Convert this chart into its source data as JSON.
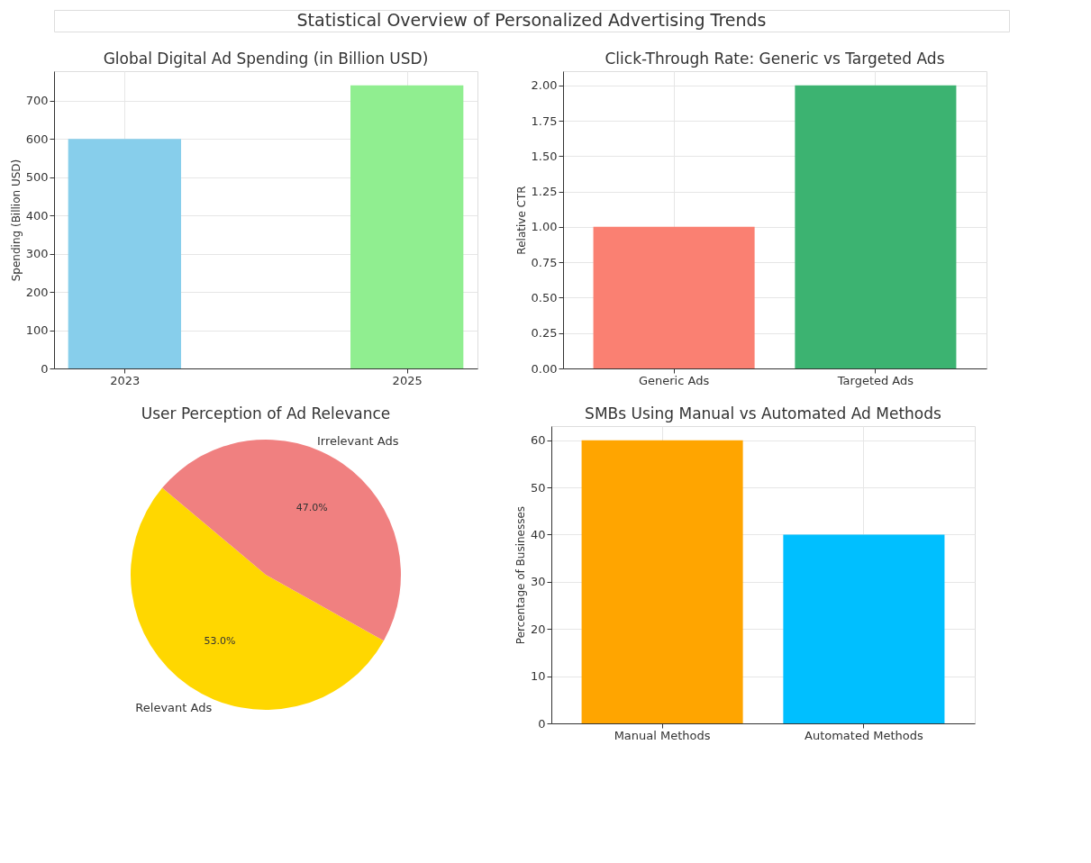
{
  "chart_data": [
    {
      "type": "other",
      "title": "Statistical Overview of Personalized Advertising Trends"
    },
    {
      "type": "bar",
      "title": "Global Digital Ad Spending (in Billion USD)",
      "ylabel": "Spending (Billion USD)",
      "x": [
        2023,
        2025
      ],
      "values": [
        600,
        740
      ],
      "colors": [
        "#87ceeb",
        "#90ee90"
      ],
      "xlim": [
        2022.5,
        2025.5
      ],
      "xticks": [
        2023,
        2025
      ],
      "ylim": [
        0,
        777
      ],
      "yticks": [
        0,
        100,
        200,
        300,
        400,
        500,
        600,
        700
      ],
      "grid": true
    },
    {
      "type": "bar",
      "title": "Click-Through Rate: Generic vs Targeted Ads",
      "ylabel": "Relative CTR",
      "categories": [
        "Generic Ads",
        "Targeted Ads"
      ],
      "values": [
        1.0,
        2.0
      ],
      "colors": [
        "#fa8072",
        "#3cb371"
      ],
      "ylim": [
        0,
        2.1
      ],
      "yticks": [
        {
          "value": 0,
          "label": "0.00"
        },
        {
          "value": 0.25,
          "label": "0.25"
        },
        {
          "value": 0.5,
          "label": "0.50"
        },
        {
          "value": 0.75,
          "label": "0.75"
        },
        {
          "value": 1,
          "label": "1.00"
        },
        {
          "value": 1.25,
          "label": "1.25"
        },
        {
          "value": 1.5,
          "label": "1.50"
        },
        {
          "value": 1.75,
          "label": "1.75"
        },
        {
          "value": 2,
          "label": "2.00"
        }
      ],
      "grid": true
    },
    {
      "type": "pie",
      "title": "User Perception of Ad Relevance",
      "categories": [
        "Relevant Ads",
        "Irrelevant Ads"
      ],
      "values": [
        53,
        47
      ],
      "colors": [
        "#ffd700",
        "#f08080"
      ],
      "value_labels": [
        "53.0%",
        "47.0%"
      ]
    },
    {
      "type": "bar",
      "title": "SMBs Using Manual vs Automated Ad Methods",
      "ylabel": "Percentage of Businesses",
      "categories": [
        "Manual Methods",
        "Automated Methods"
      ],
      "values": [
        60,
        40
      ],
      "colors": [
        "#ffa500",
        "#00bfff"
      ],
      "ylim": [
        0,
        63
      ],
      "yticks": [
        0,
        10,
        20,
        30,
        40,
        50,
        60
      ],
      "grid": true
    }
  ]
}
